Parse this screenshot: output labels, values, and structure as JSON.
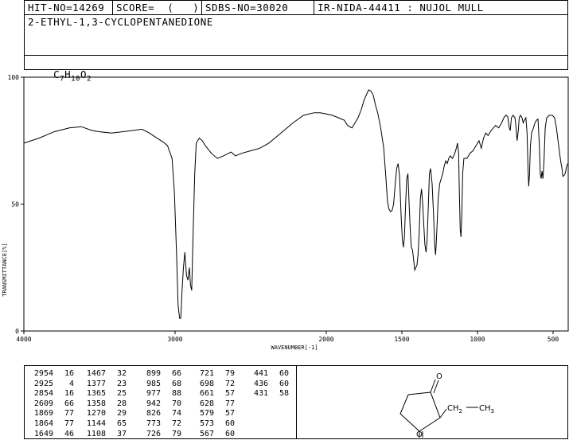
{
  "header": {
    "hit_no": "HIT-NO=14269",
    "score": "SCORE=  (   )",
    "sdbs_no": "SDBS-NO=30020",
    "ir_info": "IR-NIDA-44411 : NUJOL MULL"
  },
  "compound_name": "2-ETHYL-1,3-CYCLOPENTANEDIONE",
  "formula": {
    "c": "C",
    "c_n": "7",
    "h": "H",
    "h_n": "10",
    "o": "O",
    "o_n": "2"
  },
  "chart_data": {
    "type": "line",
    "xlabel": "WAVENUMBER[-1]",
    "ylabel": "TRANSMITTANCE[%]",
    "xlim": [
      4000,
      400
    ],
    "ylim": [
      0,
      100
    ],
    "x_ticks": [
      "4000",
      "3000",
      "2000",
      "1500",
      "1000",
      "500"
    ],
    "x_tick_values": [
      4000,
      3000,
      2000,
      1500,
      1000,
      500
    ],
    "y_ticks": [
      "0",
      "50",
      "100"
    ],
    "y_tick_values": [
      0,
      50,
      100
    ],
    "series": [
      {
        "points": [
          [
            4000,
            74
          ],
          [
            3900,
            76
          ],
          [
            3800,
            78.5
          ],
          [
            3700,
            80
          ],
          [
            3620,
            80.5
          ],
          [
            3550,
            79
          ],
          [
            3500,
            78.5
          ],
          [
            3420,
            78
          ],
          [
            3350,
            78.5
          ],
          [
            3280,
            79
          ],
          [
            3220,
            79.5
          ],
          [
            3170,
            78
          ],
          [
            3120,
            76
          ],
          [
            3080,
            74.5
          ],
          [
            3050,
            73
          ],
          [
            3020,
            68
          ],
          [
            3005,
            55
          ],
          [
            2990,
            30
          ],
          [
            2980,
            10
          ],
          [
            2970,
            5
          ],
          [
            2962,
            5
          ],
          [
            2955,
            15
          ],
          [
            2945,
            25
          ],
          [
            2935,
            31
          ],
          [
            2925,
            22
          ],
          [
            2915,
            20
          ],
          [
            2905,
            25
          ],
          [
            2898,
            18
          ],
          [
            2890,
            16
          ],
          [
            2880,
            40
          ],
          [
            2870,
            62
          ],
          [
            2860,
            74
          ],
          [
            2840,
            76
          ],
          [
            2820,
            75
          ],
          [
            2800,
            73
          ],
          [
            2760,
            70
          ],
          [
            2720,
            68
          ],
          [
            2680,
            69
          ],
          [
            2630,
            70.5
          ],
          [
            2600,
            69
          ],
          [
            2560,
            70
          ],
          [
            2500,
            71
          ],
          [
            2440,
            72
          ],
          [
            2380,
            74
          ],
          [
            2300,
            78
          ],
          [
            2220,
            82
          ],
          [
            2150,
            85
          ],
          [
            2080,
            86
          ],
          [
            2040,
            86
          ],
          [
            2000,
            85.5
          ],
          [
            1960,
            85
          ],
          [
            1920,
            84
          ],
          [
            1880,
            83
          ],
          [
            1860,
            81
          ],
          [
            1830,
            80
          ],
          [
            1810,
            82
          ],
          [
            1790,
            84
          ],
          [
            1770,
            87
          ],
          [
            1750,
            91
          ],
          [
            1735,
            93
          ],
          [
            1720,
            95
          ],
          [
            1705,
            94.5
          ],
          [
            1690,
            93
          ],
          [
            1675,
            89
          ],
          [
            1660,
            86
          ],
          [
            1640,
            80
          ],
          [
            1620,
            72
          ],
          [
            1605,
            60
          ],
          [
            1595,
            51
          ],
          [
            1585,
            48
          ],
          [
            1575,
            47
          ],
          [
            1565,
            47.5
          ],
          [
            1555,
            50
          ],
          [
            1545,
            57
          ],
          [
            1535,
            64
          ],
          [
            1525,
            66
          ],
          [
            1515,
            61
          ],
          [
            1505,
            45
          ],
          [
            1497,
            36
          ],
          [
            1490,
            33
          ],
          [
            1483,
            37
          ],
          [
            1475,
            50
          ],
          [
            1468,
            60
          ],
          [
            1460,
            62
          ],
          [
            1452,
            50
          ],
          [
            1445,
            40
          ],
          [
            1438,
            33
          ],
          [
            1430,
            32
          ],
          [
            1422,
            28
          ],
          [
            1415,
            24
          ],
          [
            1408,
            25
          ],
          [
            1400,
            26
          ],
          [
            1393,
            30
          ],
          [
            1386,
            38
          ],
          [
            1378,
            52
          ],
          [
            1370,
            56
          ],
          [
            1362,
            50
          ],
          [
            1355,
            42
          ],
          [
            1348,
            34
          ],
          [
            1340,
            31
          ],
          [
            1333,
            36
          ],
          [
            1325,
            50
          ],
          [
            1318,
            62
          ],
          [
            1310,
            64
          ],
          [
            1300,
            58
          ],
          [
            1290,
            45
          ],
          [
            1283,
            34
          ],
          [
            1277,
            30
          ],
          [
            1270,
            38
          ],
          [
            1260,
            52
          ],
          [
            1250,
            58
          ],
          [
            1240,
            60
          ],
          [
            1230,
            62
          ],
          [
            1220,
            65
          ],
          [
            1210,
            67
          ],
          [
            1200,
            66
          ],
          [
            1190,
            68
          ],
          [
            1180,
            69
          ],
          [
            1165,
            68
          ],
          [
            1150,
            70
          ],
          [
            1140,
            72
          ],
          [
            1132,
            74
          ],
          [
            1125,
            70
          ],
          [
            1120,
            55
          ],
          [
            1114,
            40
          ],
          [
            1109,
            37
          ],
          [
            1104,
            45
          ],
          [
            1098,
            62
          ],
          [
            1090,
            68
          ],
          [
            1070,
            68
          ],
          [
            1050,
            70
          ],
          [
            1030,
            71
          ],
          [
            1010,
            73
          ],
          [
            990,
            75
          ],
          [
            975,
            72
          ],
          [
            960,
            76
          ],
          [
            945,
            78
          ],
          [
            930,
            77
          ],
          [
            910,
            79
          ],
          [
            895,
            80
          ],
          [
            880,
            81
          ],
          [
            860,
            80
          ],
          [
            840,
            82
          ],
          [
            826,
            84
          ],
          [
            812,
            85
          ],
          [
            800,
            84.5
          ],
          [
            790,
            80
          ],
          [
            783,
            79
          ],
          [
            776,
            84
          ],
          [
            764,
            85
          ],
          [
            752,
            84
          ],
          [
            745,
            80
          ],
          [
            738,
            75
          ],
          [
            730,
            79
          ],
          [
            724,
            84
          ],
          [
            715,
            85
          ],
          [
            705,
            84
          ],
          [
            698,
            82
          ],
          [
            690,
            83
          ],
          [
            680,
            84
          ],
          [
            672,
            78
          ],
          [
            665,
            63
          ],
          [
            661,
            57
          ],
          [
            656,
            62
          ],
          [
            650,
            73
          ],
          [
            642,
            78
          ],
          [
            630,
            80
          ],
          [
            620,
            82
          ],
          [
            610,
            83
          ],
          [
            600,
            83.5
          ],
          [
            592,
            75
          ],
          [
            585,
            62
          ],
          [
            579,
            60
          ],
          [
            573,
            63
          ],
          [
            567,
            60
          ],
          [
            560,
            67
          ],
          [
            552,
            80
          ],
          [
            542,
            84
          ],
          [
            525,
            85
          ],
          [
            505,
            85
          ],
          [
            490,
            84
          ],
          [
            478,
            80
          ],
          [
            465,
            74
          ],
          [
            450,
            67
          ],
          [
            441,
            64
          ],
          [
            436,
            61
          ],
          [
            431,
            61
          ],
          [
            420,
            62
          ],
          [
            410,
            65
          ],
          [
            402,
            66
          ]
        ]
      }
    ]
  },
  "peaks": [
    [
      [
        "2954",
        "16"
      ],
      [
        "2925",
        "4"
      ],
      [
        "2854",
        "16"
      ],
      [
        "2609",
        "66"
      ],
      [
        "1869",
        "77"
      ],
      [
        "1864",
        "77"
      ],
      [
        "1649",
        "46"
      ]
    ],
    [
      [
        "1467",
        "32"
      ],
      [
        "1377",
        "23"
      ],
      [
        "1365",
        "25"
      ],
      [
        "1358",
        "28"
      ],
      [
        "1270",
        "29"
      ],
      [
        "1144",
        "65"
      ],
      [
        "1108",
        "37"
      ]
    ],
    [
      [
        "899",
        "66"
      ],
      [
        "985",
        "68"
      ],
      [
        "977",
        "88"
      ],
      [
        "942",
        "70"
      ],
      [
        "826",
        "74"
      ],
      [
        "773",
        "72"
      ],
      [
        "726",
        "79"
      ]
    ],
    [
      [
        "721",
        "79"
      ],
      [
        "698",
        "72"
      ],
      [
        "661",
        "57"
      ],
      [
        "628",
        "77"
      ],
      [
        "579",
        "57"
      ],
      [
        "573",
        "60"
      ],
      [
        "567",
        "60"
      ]
    ],
    [
      [
        "441",
        "60"
      ],
      [
        "436",
        "60"
      ],
      [
        "431",
        "58"
      ]
    ]
  ],
  "structure": {
    "o_top": "O",
    "o_bottom": "O",
    "ch2": "CH",
    "ch2_sub": "2",
    "ch3": "CH",
    "ch3_sub": "3"
  }
}
